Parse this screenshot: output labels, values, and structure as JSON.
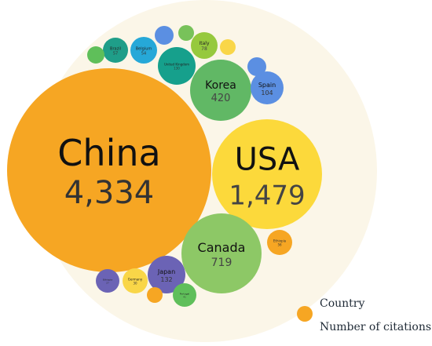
{
  "chart_data": {
    "type": "bubble",
    "metric": "Number of citations",
    "background_color": "#fbf6e8",
    "bubbles": [
      {
        "country": "China",
        "value": 4334,
        "label": "4,334",
        "color": "#f6a623"
      },
      {
        "country": "USA",
        "value": 1479,
        "label": "1,479",
        "color": "#fcd93b"
      },
      {
        "country": "Canada",
        "value": 719,
        "label": "719",
        "color": "#8dc866"
      },
      {
        "country": "Korea",
        "value": 420,
        "label": "420",
        "color": "#61b865"
      },
      {
        "country": "Spain",
        "value": 104,
        "label": "104",
        "color": "#5b8fe2"
      },
      {
        "country": "Japan",
        "value": 132,
        "label": "132",
        "color": "#6b63b5"
      },
      {
        "country": "Italy",
        "value": 78,
        "label": "78",
        "color": "#96c93d"
      },
      {
        "country": "Belgium",
        "value": 54,
        "label": "54",
        "color": "#26a8d8"
      },
      {
        "country": "Brazil",
        "value": 57,
        "label": "57",
        "color": "#1f9e89"
      },
      {
        "country": "United Kingdom",
        "value": 130,
        "label": "130",
        "color": "#16a08c"
      },
      {
        "country": "Ethiopia",
        "value": 56,
        "label": "56",
        "color": "#f6a623"
      },
      {
        "country": "Germany",
        "value": 30,
        "label": "30",
        "color": "#f9d648"
      },
      {
        "country": "Portugal",
        "value": 41,
        "label": "41",
        "color": "#5fbf5a"
      },
      {
        "country": "Ethiopia",
        "value": 27,
        "label": "27",
        "color": "#6b63b5"
      },
      {
        "country": "",
        "value": 20,
        "label": "",
        "color": "#f6a623"
      },
      {
        "country": "",
        "value": 20,
        "label": "",
        "color": "#5b8fe2"
      },
      {
        "country": "",
        "value": 20,
        "label": "",
        "color": "#78c25a"
      },
      {
        "country": "",
        "value": 20,
        "label": "",
        "color": "#5b8fe2"
      },
      {
        "country": "",
        "value": 15,
        "label": "",
        "color": "#f9d648"
      },
      {
        "country": "",
        "value": 17,
        "label": "",
        "color": "#5fbf5a"
      },
      {
        "country": "",
        "value": 12,
        "label": "",
        "color": "#f9d648"
      }
    ]
  },
  "legend": {
    "color": "#f6a623",
    "line1": "Country",
    "line2": "Number of citations"
  }
}
